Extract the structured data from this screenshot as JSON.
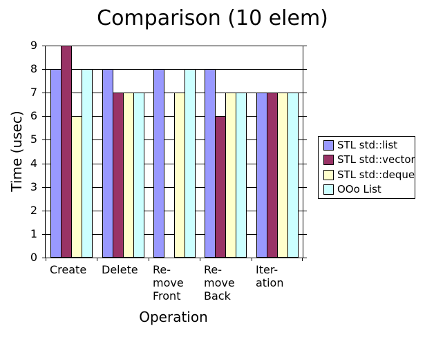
{
  "chart_data": {
    "type": "bar",
    "title": "Comparison (10 elem)",
    "xlabel": "Operation",
    "ylabel": "Time (usec)",
    "ylim": [
      0,
      9
    ],
    "yticks": [
      "0",
      "1",
      "2",
      "3",
      "4",
      "5",
      "6",
      "7",
      "8",
      "9"
    ],
    "grid": "horizontal",
    "legend_position": "right",
    "categories": [
      "Create",
      "Delete",
      "Remove Front",
      "Remove Back",
      "Iteration"
    ],
    "category_label_lines": [
      [
        "Create"
      ],
      [
        "Delete"
      ],
      [
        "Re-",
        "move",
        "Front"
      ],
      [
        "Re-",
        "move",
        "Back"
      ],
      [
        "Iter-",
        "ation"
      ]
    ],
    "series": [
      {
        "name": "STL std::list",
        "color": "#9999FF",
        "values": [
          8,
          8,
          8,
          8,
          7
        ]
      },
      {
        "name": "STL std::vector",
        "color": "#993366",
        "values": [
          9,
          7,
          0,
          6,
          7
        ]
      },
      {
        "name": "STL std::deque",
        "color": "#FFFFCC",
        "values": [
          6,
          7,
          7,
          7,
          7
        ]
      },
      {
        "name": "OOo List",
        "color": "#CCFFFF",
        "values": [
          8,
          7,
          8,
          7,
          7
        ]
      }
    ],
    "colors": {
      "axis": "#000000",
      "background": "#FFFFFF",
      "text": "#000000"
    }
  }
}
